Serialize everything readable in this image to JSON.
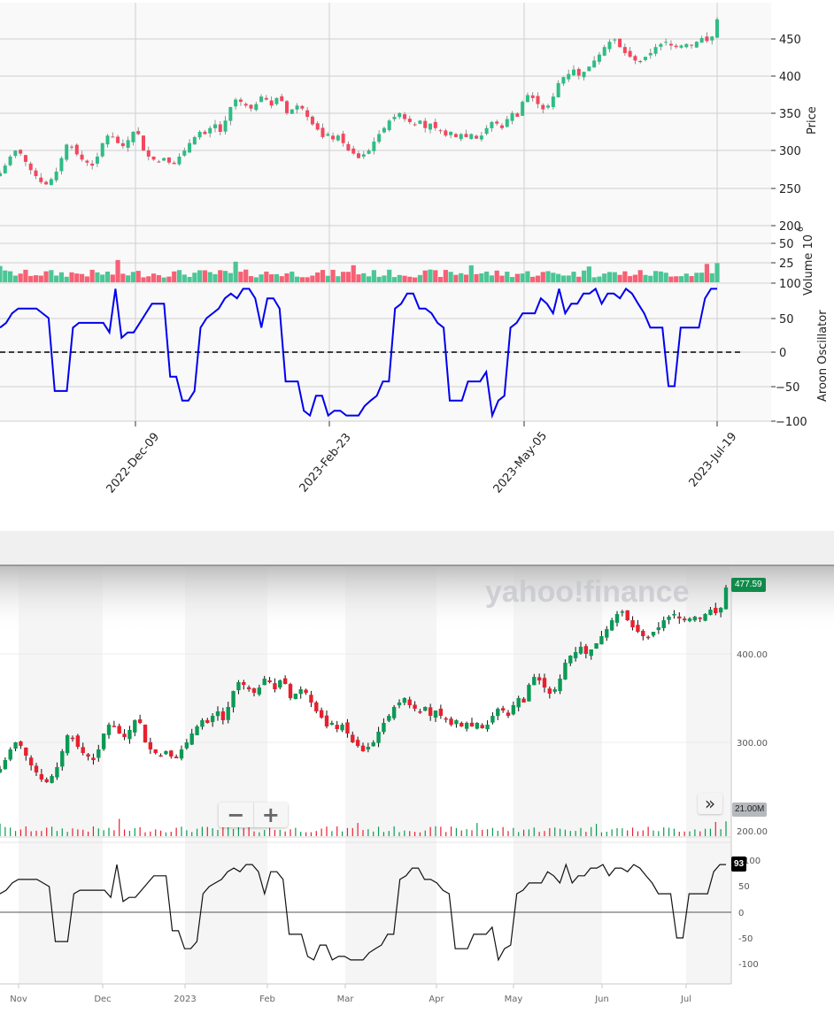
{
  "chart_data": [
    {
      "type": "candlestick",
      "title": "",
      "style": "matplotlib / mplfinance",
      "panels": [
        {
          "name": "price",
          "ylabel": "Price",
          "yticks": [
            200,
            250,
            300,
            350,
            400,
            450
          ],
          "ylim": [
            200,
            495
          ]
        },
        {
          "name": "volume",
          "ylabel": "Volume 10^6",
          "yticks": [
            25,
            50,
            100
          ],
          "ylim": [
            0,
            55
          ]
        },
        {
          "name": "aroon",
          "ylabel": "Aroon Oscillator",
          "yticks": [
            -100,
            -50,
            0,
            50,
            100
          ],
          "ylim": [
            -100,
            100
          ],
          "hline": 0
        }
      ],
      "x_tick_labels": [
        "2022-Dec-09",
        "2023-Feb-23",
        "2023-May-05",
        "2023-Jul-19"
      ],
      "x_range": [
        "2022-Oct-28",
        "2023-Jul-19"
      ],
      "colors": {
        "up": "#2ebd85",
        "down": "#f6465d",
        "aroon_line": "#0000ee",
        "zero_line": "#000000"
      },
      "price_path": [
        270,
        280,
        292,
        300,
        296,
        285,
        274,
        266,
        258,
        255,
        262,
        272,
        290,
        308,
        305,
        295,
        288,
        284,
        280,
        292,
        310,
        320,
        318,
        310,
        306,
        314,
        325,
        322,
        300,
        292,
        288,
        285,
        290,
        284,
        282,
        292,
        300,
        310,
        318,
        325,
        322,
        330,
        335,
        325,
        340,
        358,
        368,
        365,
        360,
        356,
        362,
        372,
        368,
        360,
        370,
        366,
        350,
        355,
        360,
        356,
        345,
        335,
        328,
        318,
        322,
        315,
        320,
        310,
        300,
        296,
        290,
        295,
        300,
        312,
        322,
        330,
        340,
        345,
        350,
        342,
        338,
        335,
        340,
        330,
        336,
        330,
        326,
        320,
        325,
        318,
        322,
        318,
        322,
        316,
        320,
        330,
        338,
        336,
        330,
        342,
        350,
        345,
        365,
        374,
        370,
        362,
        355,
        360,
        372,
        390,
        398,
        402,
        408,
        400,
        405,
        412,
        420,
        428,
        438,
        445,
        448,
        438,
        430,
        425,
        420,
        418,
        425,
        430,
        438,
        442,
        445,
        440,
        438,
        440,
        442,
        440,
        445,
        450,
        446,
        452,
        475
      ],
      "aroon_path": [
        36,
        43,
        57,
        64,
        64,
        64,
        64,
        57,
        50,
        -57,
        -57,
        -57,
        36,
        43,
        43,
        43,
        43,
        43,
        29,
        93,
        21,
        29,
        29,
        43,
        57,
        71,
        71,
        71,
        -36,
        -36,
        -71,
        -71,
        -57,
        36,
        50,
        57,
        64,
        79,
        86,
        79,
        93,
        93,
        79,
        36,
        79,
        79,
        64,
        -43,
        -43,
        -43,
        -86,
        -93,
        -64,
        -64,
        -93,
        -86,
        -86,
        -93,
        -93,
        -93,
        -79,
        -71,
        -64,
        -43,
        -43,
        64,
        71,
        86,
        86,
        64,
        64,
        57,
        43,
        36,
        -71,
        -71,
        -71,
        -43,
        -43,
        -43,
        -29,
        -93,
        -71,
        -64,
        36,
        43,
        57,
        57,
        57,
        79,
        71,
        57,
        93,
        57,
        71,
        71,
        86,
        86,
        93,
        71,
        86,
        86,
        79,
        93,
        86,
        71,
        57,
        36,
        36,
        36,
        -50,
        -50,
        36,
        36,
        36,
        36,
        79,
        93,
        93
      ]
    },
    {
      "type": "candlestick",
      "title": "",
      "style": "Yahoo Finance interactive chart",
      "watermark": "yahoo!finance",
      "panels": [
        {
          "name": "price",
          "yticks": [
            300.0,
            400.0
          ],
          "last_price": 477.59,
          "ylim": [
            245,
            495
          ]
        },
        {
          "name": "volume",
          "yticks": [
            200.0
          ],
          "last_volume": "21.00M"
        },
        {
          "name": "aroon",
          "yticks": [
            -100,
            -50,
            0,
            50,
            100
          ],
          "last_value": 93,
          "ylim": [
            -130,
            110
          ],
          "hline": 0
        }
      ],
      "x_tick_labels": [
        "Nov",
        "Dec",
        "2023",
        "Feb",
        "Mar",
        "Apr",
        "May",
        "Jun",
        "Jul"
      ],
      "colors": {
        "up": "#0b9a55",
        "down": "#e8202e",
        "aroon_line": "#000000",
        "badge_price": "#0f8a4a",
        "badge_aroon": "#000000",
        "badge_volume": "#b5b8bd"
      }
    }
  ],
  "top": {
    "price_ticks": [
      "450",
      "400",
      "350",
      "300",
      "250",
      "200"
    ],
    "price_label": "Price",
    "volume_ticks": [
      "50",
      "25",
      "100"
    ],
    "volume_label": "Volume  10",
    "volume_exponent": "6",
    "aroon_ticks": [
      "100",
      "50",
      "0",
      "−50",
      "−100"
    ],
    "aroon_label": "Aroon Oscillator",
    "date_labels": [
      "2022-Dec-09",
      "2023-Feb-23",
      "2023-May-05",
      "2023-Jul-19"
    ]
  },
  "bottom": {
    "watermark": "yahoo!finance",
    "price_badge": "477.59",
    "price_ticks": [
      "400.00",
      "300.00"
    ],
    "volume_badge": "21.00M",
    "volume_tick": "200.00",
    "aroon_badge": "93",
    "aroon_ticks": [
      "100",
      "50",
      "0",
      "-50",
      "-100"
    ],
    "month_labels": [
      "Nov",
      "Dec",
      "2023",
      "Feb",
      "Mar",
      "Apr",
      "May",
      "Jun",
      "Jul"
    ],
    "zoom_out_label": "−",
    "zoom_in_label": "+",
    "scroll_label": "»"
  }
}
